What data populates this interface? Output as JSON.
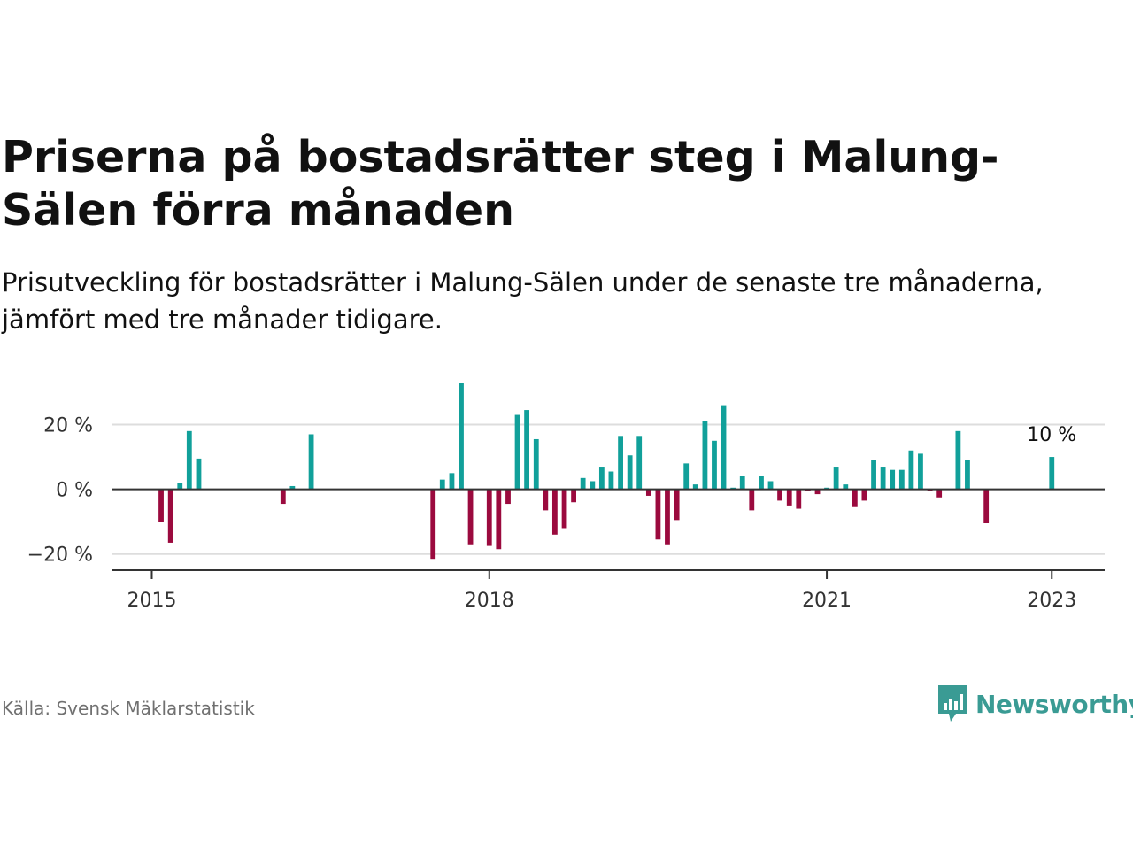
{
  "title": "Priserna på bostadsrätter steg i Malung-Sälen förra månaden",
  "subtitle": "Prisutveckling för bostadsrätter i Malung-Sälen under de senaste tre månaderna, jämfört med tre månader tidigare.",
  "source": "Källa: Svensk Mäklarstatistik",
  "brand": "Newsworthy",
  "colors": {
    "positive": "#11a09a",
    "negative": "#9b0a3e",
    "brand": "#3a9b94",
    "grid": "#dddddd",
    "axis": "#333333",
    "source_text": "#707070"
  },
  "chart_data": {
    "type": "bar",
    "x_unit": "year",
    "ylim": [
      -25,
      33
    ],
    "xlim": [
      2014.65,
      2023.47
    ],
    "yticks": [
      {
        "value": 20,
        "label": "20 %"
      },
      {
        "value": 0,
        "label": "0 %"
      },
      {
        "value": -20,
        "label": "−20 %"
      }
    ],
    "xticks": [
      {
        "value": 2015,
        "label": "2015"
      },
      {
        "value": 2018,
        "label": "2018"
      },
      {
        "value": 2021,
        "label": "2021"
      },
      {
        "value": 2023,
        "label": "2023"
      }
    ],
    "last_value_label": "10 %",
    "points": [
      {
        "x": 2015.083,
        "y": -10
      },
      {
        "x": 2015.167,
        "y": -16.5
      },
      {
        "x": 2015.25,
        "y": 2
      },
      {
        "x": 2015.333,
        "y": 18
      },
      {
        "x": 2015.417,
        "y": 9.5
      },
      {
        "x": 2016.167,
        "y": -4.5
      },
      {
        "x": 2016.25,
        "y": 1
      },
      {
        "x": 2016.417,
        "y": 17
      },
      {
        "x": 2017.5,
        "y": -21.5
      },
      {
        "x": 2017.583,
        "y": 3
      },
      {
        "x": 2017.667,
        "y": 5
      },
      {
        "x": 2017.75,
        "y": 33
      },
      {
        "x": 2017.833,
        "y": -17
      },
      {
        "x": 2018.0,
        "y": -17.5
      },
      {
        "x": 2018.083,
        "y": -18.5
      },
      {
        "x": 2018.167,
        "y": -4.5
      },
      {
        "x": 2018.25,
        "y": 23
      },
      {
        "x": 2018.333,
        "y": 24.5
      },
      {
        "x": 2018.417,
        "y": 15.5
      },
      {
        "x": 2018.5,
        "y": -6.5
      },
      {
        "x": 2018.583,
        "y": -14
      },
      {
        "x": 2018.667,
        "y": -12
      },
      {
        "x": 2018.75,
        "y": -4
      },
      {
        "x": 2018.833,
        "y": 3.5
      },
      {
        "x": 2018.917,
        "y": 2.5
      },
      {
        "x": 2019.0,
        "y": 7
      },
      {
        "x": 2019.083,
        "y": 5.5
      },
      {
        "x": 2019.167,
        "y": 16.5
      },
      {
        "x": 2019.25,
        "y": 10.5
      },
      {
        "x": 2019.333,
        "y": 16.5
      },
      {
        "x": 2019.417,
        "y": -2
      },
      {
        "x": 2019.5,
        "y": -15.5
      },
      {
        "x": 2019.583,
        "y": -17
      },
      {
        "x": 2019.667,
        "y": -9.5
      },
      {
        "x": 2019.75,
        "y": 8
      },
      {
        "x": 2019.833,
        "y": 1.5
      },
      {
        "x": 2019.917,
        "y": 21
      },
      {
        "x": 2020.0,
        "y": 15
      },
      {
        "x": 2020.083,
        "y": 26
      },
      {
        "x": 2020.167,
        "y": 0.5
      },
      {
        "x": 2020.25,
        "y": 4
      },
      {
        "x": 2020.333,
        "y": -6.5
      },
      {
        "x": 2020.417,
        "y": 4
      },
      {
        "x": 2020.5,
        "y": 2.5
      },
      {
        "x": 2020.583,
        "y": -3.5
      },
      {
        "x": 2020.667,
        "y": -5
      },
      {
        "x": 2020.75,
        "y": -6
      },
      {
        "x": 2020.833,
        "y": -0.5
      },
      {
        "x": 2020.917,
        "y": -1.5
      },
      {
        "x": 2021.0,
        "y": 0.5
      },
      {
        "x": 2021.083,
        "y": 7
      },
      {
        "x": 2021.167,
        "y": 1.5
      },
      {
        "x": 2021.25,
        "y": -5.5
      },
      {
        "x": 2021.333,
        "y": -3.5
      },
      {
        "x": 2021.417,
        "y": 9
      },
      {
        "x": 2021.5,
        "y": 7
      },
      {
        "x": 2021.583,
        "y": 6
      },
      {
        "x": 2021.667,
        "y": 6
      },
      {
        "x": 2021.75,
        "y": 12
      },
      {
        "x": 2021.833,
        "y": 11
      },
      {
        "x": 2021.917,
        "y": -0.5
      },
      {
        "x": 2022.0,
        "y": -2.5
      },
      {
        "x": 2022.167,
        "y": 18
      },
      {
        "x": 2022.25,
        "y": 9
      },
      {
        "x": 2022.417,
        "y": -10.5
      },
      {
        "x": 2023.0,
        "y": 10
      }
    ]
  }
}
